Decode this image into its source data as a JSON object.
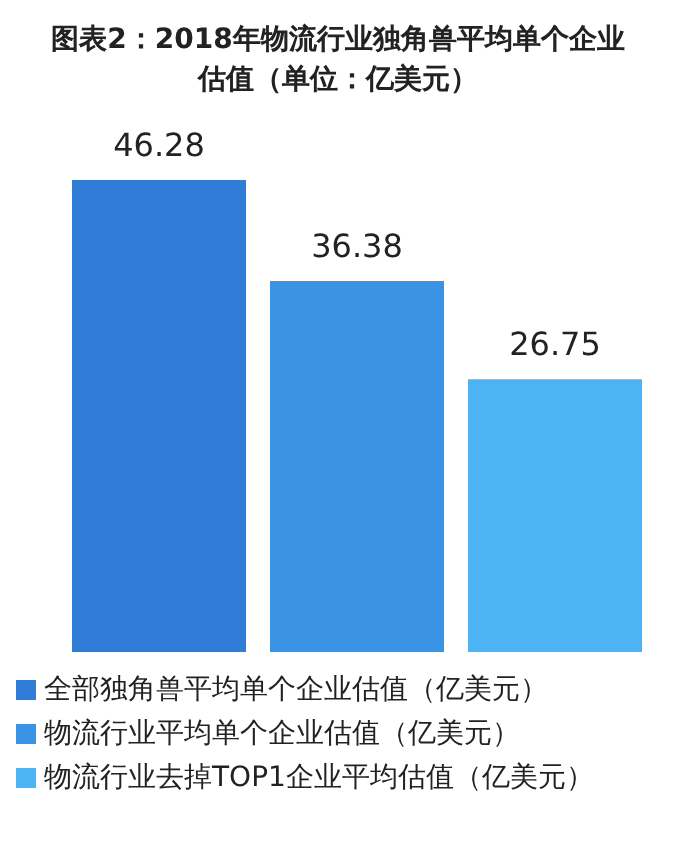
{
  "chart_data": {
    "type": "bar",
    "title": "图表2：2018年物流行业独角兽平均单个企业估值（单位：亿美元）",
    "categories": [
      null
    ],
    "series": [
      {
        "name": "全部独角兽平均单个企业估值（亿美元）",
        "color": "#2f7dd6",
        "values": [
          46.28
        ]
      },
      {
        "name": "物流行业平均单个企业估值（亿美元）",
        "color": "#3b93e6",
        "values": [
          36.38
        ]
      },
      {
        "name": "物流行业去掉TOP1企业平均估值（亿美元）",
        "color": "#4db4f3",
        "values": [
          26.75
        ]
      }
    ],
    "data_labels": true,
    "legend": "bottom"
  }
}
